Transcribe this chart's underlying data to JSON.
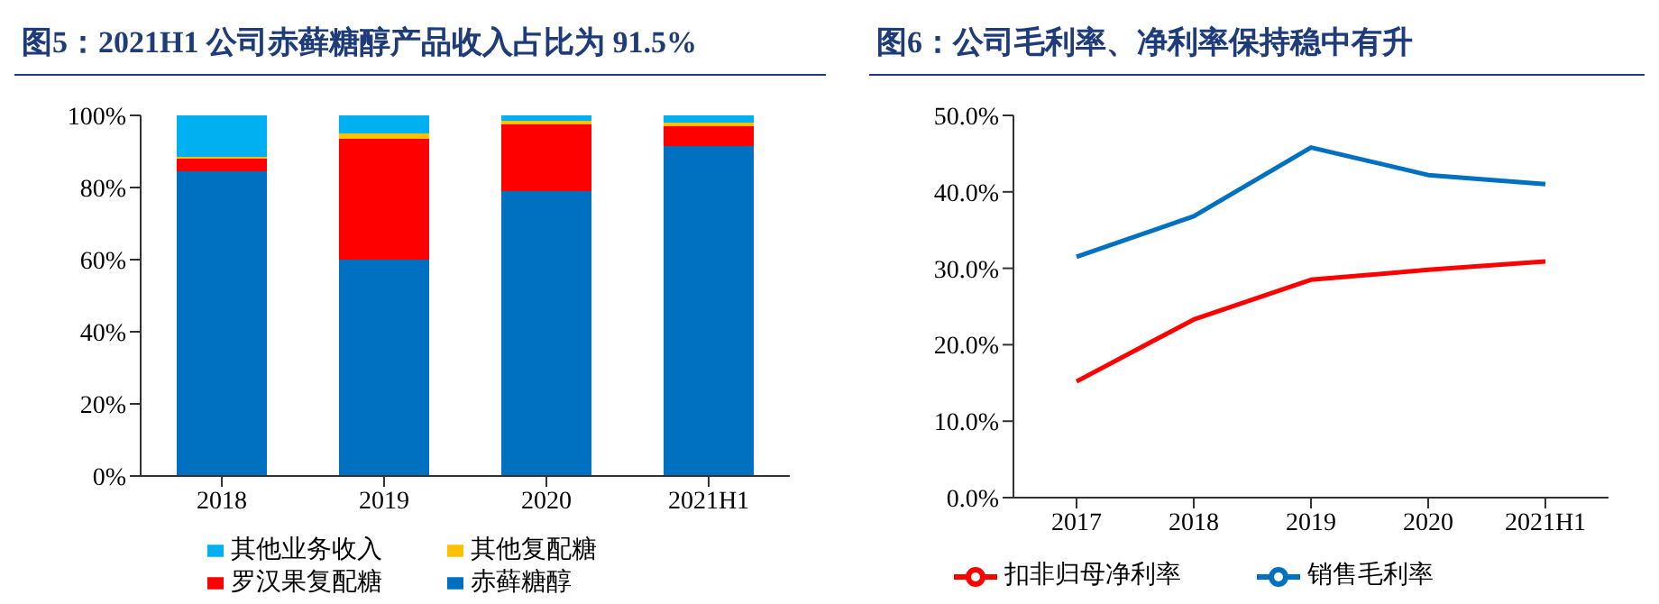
{
  "chart_data": [
    {
      "type": "bar",
      "title": "图5：2021H1 公司赤藓糖醇产品收入占比为 91.5%",
      "stacked": true,
      "categories": [
        "2018",
        "2019",
        "2020",
        "2021H1"
      ],
      "series": [
        {
          "name": "赤藓糖醇",
          "color": "#0070c0",
          "values": [
            84.5,
            60,
            79,
            91.5
          ]
        },
        {
          "name": "罗汉果复配糖",
          "color": "#ff0000",
          "values": [
            3.5,
            33.5,
            18.5,
            5.5
          ]
        },
        {
          "name": "其他复配糖",
          "color": "#ffc000",
          "values": [
            0.5,
            1.5,
            1,
            1
          ]
        },
        {
          "name": "其他业务收入",
          "color": "#00b0f0",
          "values": [
            11.5,
            5,
            1.5,
            2
          ]
        }
      ],
      "ylim": [
        0,
        100
      ],
      "yticks": [
        {
          "value": 0,
          "label": "0%"
        },
        {
          "value": 20,
          "label": "20%"
        },
        {
          "value": 40,
          "label": "40%"
        },
        {
          "value": 60,
          "label": "60%"
        },
        {
          "value": 80,
          "label": "80%"
        },
        {
          "value": 100,
          "label": "100%"
        }
      ],
      "grid": false,
      "legend": "bottom"
    },
    {
      "type": "line",
      "title": "图6：公司毛利率、净利率保持稳中有升",
      "categories": [
        "2017",
        "2018",
        "2019",
        "2020",
        "2021H1"
      ],
      "series": [
        {
          "name": "销售毛利率",
          "color": "#0070c0",
          "values": [
            31.5,
            36.8,
            45.8,
            42.2,
            41.0
          ]
        },
        {
          "name": "扣非归母净利率",
          "color": "#ff0000",
          "values": [
            15.2,
            23.3,
            28.5,
            29.8,
            30.9
          ]
        }
      ],
      "ylim": [
        0,
        50
      ],
      "yticks": [
        {
          "value": 0,
          "label": "0.0%"
        },
        {
          "value": 10,
          "label": "10.0%"
        },
        {
          "value": 20,
          "label": "20.0%"
        },
        {
          "value": 30,
          "label": "30.0%"
        },
        {
          "value": 40,
          "label": "40.0%"
        },
        {
          "value": 50,
          "label": "50.0%"
        }
      ],
      "grid": false,
      "legend": "bottom",
      "marker": "none",
      "line_style": "solid"
    }
  ]
}
